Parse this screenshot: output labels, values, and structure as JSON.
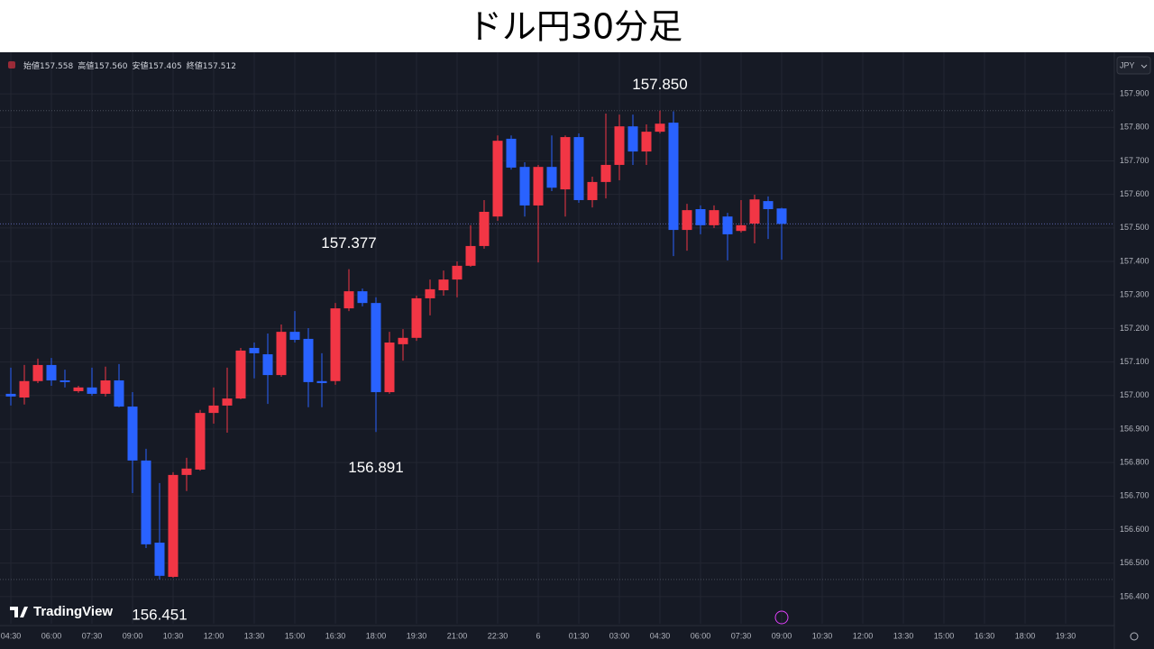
{
  "chart_data": {
    "type": "candlestick",
    "title": "ドル円30分足",
    "currency": "JPY",
    "watermark": "TradingView",
    "header_items": [
      {
        "name": "始値",
        "value": "157.558"
      },
      {
        "name": "高値",
        "value": "157.560"
      },
      {
        "name": "安値",
        "value": "157.405"
      },
      {
        "name": "終値",
        "value": "157.512"
      }
    ],
    "up_color": "#f23645",
    "down_color": "#2962ff",
    "ylim": [
      156.319,
      158.024
    ],
    "yticks": [
      {
        "value": 156.4,
        "label": "156.400"
      },
      {
        "value": 156.5,
        "label": "156.500"
      },
      {
        "value": 156.6,
        "label": "156.600"
      },
      {
        "value": 156.7,
        "label": "156.700"
      },
      {
        "value": 156.8,
        "label": "156.800"
      },
      {
        "value": 156.9,
        "label": "156.900"
      },
      {
        "value": 157.0,
        "label": "157.000"
      },
      {
        "value": 157.1,
        "label": "157.100"
      },
      {
        "value": 157.2,
        "label": "157.200"
      },
      {
        "value": 157.3,
        "label": "157.300"
      },
      {
        "value": 157.4,
        "label": "157.400"
      },
      {
        "value": 157.5,
        "label": "157.500"
      },
      {
        "value": 157.6,
        "label": "157.600"
      },
      {
        "value": 157.7,
        "label": "157.700"
      },
      {
        "value": 157.8,
        "label": "157.800"
      },
      {
        "value": 157.9,
        "label": "157.900"
      }
    ],
    "grid": true,
    "categories": [
      "04:30",
      null,
      null,
      "06:00",
      null,
      null,
      "07:30",
      null,
      null,
      "09:00",
      null,
      null,
      "10:30",
      null,
      null,
      "12:00",
      null,
      null,
      "13:30",
      null,
      null,
      "15:00",
      null,
      null,
      "16:30",
      null,
      null,
      "18:00",
      null,
      null,
      "19:30",
      null,
      null,
      "21:00",
      null,
      null,
      "22:30",
      null,
      null,
      "6",
      null,
      null,
      "01:30",
      null,
      null,
      "03:00",
      null,
      null,
      "04:30",
      null,
      null,
      "06:00",
      null,
      null,
      "07:30",
      null,
      null,
      "09:00",
      null,
      null,
      "10:30",
      null,
      null,
      "12:00",
      null,
      null,
      "13:30",
      null,
      null,
      "15:00",
      null,
      null,
      "16:30",
      null,
      null,
      "18:00",
      null,
      null,
      "19:30"
    ],
    "open": [
      157.005,
      156.994,
      157.043,
      157.091,
      157.045,
      157.013,
      157.024,
      157.005,
      157.045,
      156.967,
      156.806,
      156.561,
      156.459,
      156.763,
      156.779,
      156.948,
      156.97,
      156.991,
      157.142,
      157.123,
      157.061,
      157.19,
      157.169,
      157.043,
      157.043,
      157.26,
      157.311,
      157.276,
      157.01,
      157.153,
      157.172,
      157.29,
      157.314,
      157.346,
      157.387,
      157.446,
      157.534,
      157.766,
      157.682,
      157.567,
      157.682,
      157.615,
      157.771,
      157.583,
      157.637,
      157.688,
      157.803,
      157.728,
      157.787,
      157.814,
      157.494,
      157.556,
      157.508,
      157.534,
      157.491,
      157.513,
      157.58,
      157.558,
      null,
      null,
      null,
      null,
      null,
      null,
      null,
      null,
      null,
      null,
      null,
      null,
      null,
      null,
      null,
      null,
      null,
      null,
      null,
      null,
      null
    ],
    "high": [
      157.083,
      157.091,
      157.11,
      157.112,
      157.077,
      157.029,
      157.083,
      157.086,
      157.094,
      157.01,
      156.841,
      156.739,
      156.771,
      156.814,
      156.957,
      157.024,
      157.083,
      157.142,
      157.158,
      157.185,
      157.212,
      157.252,
      157.201,
      157.126,
      157.276,
      157.377,
      157.319,
      157.293,
      157.19,
      157.198,
      157.298,
      157.346,
      157.373,
      157.4,
      157.508,
      157.583,
      157.776,
      157.776,
      157.696,
      157.688,
      157.776,
      157.776,
      157.782,
      157.653,
      157.841,
      157.838,
      157.838,
      157.809,
      157.85,
      157.848,
      157.572,
      157.567,
      157.567,
      157.545,
      157.583,
      157.599,
      157.594,
      157.56,
      null,
      null,
      null,
      null,
      null,
      null,
      null,
      null,
      null,
      null,
      null,
      null,
      null,
      null,
      null,
      null,
      null,
      null,
      null,
      null,
      null
    ],
    "low": [
      156.97,
      156.973,
      157.037,
      157.029,
      157.024,
      157.008,
      156.999,
      156.997,
      156.965,
      156.709,
      156.545,
      156.451,
      156.456,
      156.715,
      156.776,
      156.916,
      156.889,
      156.989,
      157.051,
      156.975,
      157.056,
      157.158,
      156.965,
      156.965,
      157.032,
      157.252,
      157.266,
      156.891,
      157.005,
      157.104,
      157.163,
      157.239,
      157.298,
      157.293,
      157.384,
      157.438,
      157.521,
      157.674,
      157.534,
      157.397,
      157.61,
      157.534,
      157.575,
      157.561,
      157.588,
      157.642,
      157.688,
      157.688,
      157.782,
      157.416,
      157.432,
      157.481,
      157.5,
      157.403,
      157.486,
      157.454,
      157.467,
      157.405,
      null,
      null,
      null,
      null,
      null,
      null,
      null,
      null,
      null,
      null,
      null,
      null,
      null,
      null,
      null,
      null,
      null,
      null,
      null,
      null,
      null
    ],
    "close": [
      156.997,
      157.043,
      157.091,
      157.045,
      157.04,
      157.024,
      157.005,
      157.045,
      156.967,
      156.806,
      156.556,
      156.462,
      156.763,
      156.782,
      156.948,
      156.97,
      156.991,
      157.134,
      157.126,
      157.061,
      157.19,
      157.166,
      157.04,
      157.037,
      157.26,
      157.311,
      157.276,
      157.01,
      157.158,
      157.172,
      157.29,
      157.317,
      157.346,
      157.387,
      157.446,
      157.548,
      157.76,
      157.68,
      157.567,
      157.682,
      157.62,
      157.771,
      157.583,
      157.637,
      157.688,
      157.803,
      157.728,
      157.787,
      157.811,
      157.494,
      157.553,
      157.508,
      157.553,
      157.481,
      157.508,
      157.585,
      157.556,
      157.512,
      null,
      null,
      null,
      null,
      null,
      null,
      null,
      null,
      null,
      null,
      null,
      null,
      null,
      null,
      null,
      null,
      null,
      null,
      null,
      null,
      null
    ],
    "high_labels": [
      null,
      null,
      null,
      null,
      null,
      null,
      null,
      null,
      null,
      null,
      null,
      null,
      null,
      null,
      null,
      null,
      null,
      null,
      null,
      null,
      null,
      null,
      null,
      null,
      null,
      "157.377",
      null,
      null,
      null,
      null,
      null,
      null,
      null,
      null,
      null,
      null,
      null,
      null,
      null,
      null,
      null,
      null,
      null,
      null,
      null,
      null,
      null,
      null,
      "157.850",
      null,
      null,
      null,
      null,
      null,
      null,
      null,
      null,
      null,
      null,
      null,
      null,
      null,
      null,
      null,
      null,
      null,
      null,
      null,
      null,
      null,
      null,
      null,
      null,
      null,
      null,
      null,
      null,
      null,
      null
    ],
    "low_labels": [
      null,
      null,
      null,
      null,
      null,
      null,
      null,
      null,
      null,
      null,
      null,
      "156.451",
      null,
      null,
      null,
      null,
      null,
      null,
      null,
      null,
      null,
      null,
      null,
      null,
      null,
      null,
      null,
      "156.891",
      null,
      null,
      null,
      null,
      null,
      null,
      null,
      null,
      null,
      null,
      null,
      null,
      null,
      null,
      null,
      null,
      null,
      null,
      null,
      null,
      null,
      null,
      null,
      null,
      null,
      null,
      null,
      null,
      null,
      null,
      null,
      null,
      null,
      null,
      null,
      null,
      null,
      null,
      null,
      null,
      null,
      null,
      null,
      null,
      null,
      null,
      null,
      null,
      null,
      null,
      null
    ]
  }
}
